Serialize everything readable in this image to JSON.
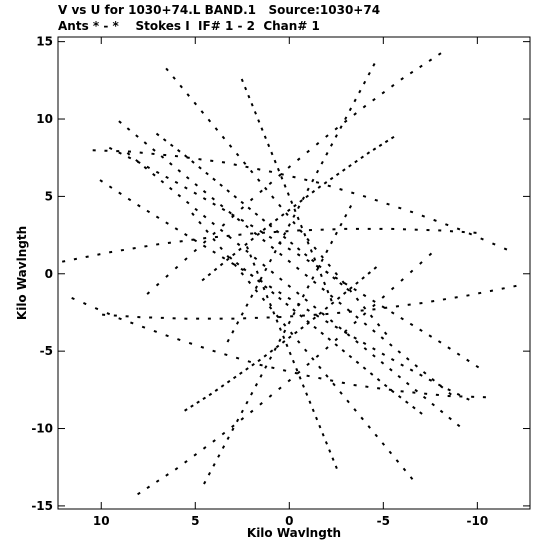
{
  "header": {
    "line1": "V vs U for 1030+74.L BAND.1   Source:1030+74",
    "line2": "Ants * - *    Stokes I  IF# 1 - 2  Chan# 1"
  },
  "chart_data": {
    "type": "scatter",
    "title": "",
    "xlabel": "Kilo Wavlngth",
    "ylabel": "Kilo Wavlngth",
    "xlim": [
      12.3,
      -12.8
    ],
    "ylim": [
      -15.2,
      15.3
    ],
    "x_reversed": true,
    "x_ticks": [
      10,
      5,
      0,
      -5,
      -10
    ],
    "x_tick_labels": [
      "10",
      "5",
      "0",
      "-5",
      "-10"
    ],
    "y_ticks": [
      15,
      10,
      5,
      0,
      -5,
      -10,
      -15
    ],
    "y_tick_labels": [
      "15",
      "10",
      "5",
      "0",
      "-5",
      "-10",
      "-15"
    ],
    "grid": false,
    "legend": "none",
    "marker": "short dash",
    "color": "#000000",
    "series": [
      {
        "description": "uv coverage tracks (conjugate symmetric); sampled points along baseline ellipses",
        "tracks": [
          {
            "u": [
              -8.0,
              -6.0,
              -4.0,
              -2.0,
              0.0,
              2.0,
              4.0,
              6.0,
              8.0
            ],
            "v": [
              14.2,
              12.6,
              10.8,
              8.9,
              6.9,
              4.8,
              2.6,
              0.4,
              -1.8
            ]
          },
          {
            "u": [
              -11.5,
              -9.0,
              -6.5,
              -4.0,
              -1.5,
              1.0,
              3.5,
              6.0,
              8.5,
              11.0
            ],
            "v": [
              1.6,
              2.9,
              4.0,
              5.0,
              5.9,
              6.6,
              7.2,
              7.6,
              7.9,
              8.0
            ]
          },
          {
            "u": [
              -10.0,
              -8.0,
              -6.0,
              -4.0,
              -2.0,
              0.0,
              2.0,
              4.0,
              6.0,
              8.0,
              10.0
            ],
            "v": [
              -6.0,
              -4.4,
              -2.9,
              -1.4,
              0.1,
              1.6,
              3.1,
              4.5,
              5.9,
              7.2,
              8.4
            ]
          },
          {
            "u": [
              -6.5,
              -5.0,
              -3.5,
              -2.0,
              -0.5,
              1.0,
              2.5,
              4.0,
              5.5
            ],
            "v": [
              -13.2,
              -11.0,
              -8.8,
              -6.6,
              -4.4,
              -2.2,
              0.0,
              2.2,
              4.4
            ]
          },
          {
            "u": [
              -4.5,
              -3.5,
              -2.5,
              -1.5,
              -0.5,
              0.5,
              1.5,
              2.5,
              3.5
            ],
            "v": [
              13.5,
              11.2,
              8.9,
              6.6,
              4.3,
              2.0,
              -0.3,
              -2.6,
              -4.9
            ]
          },
          {
            "u": [
              -12.0,
              -9.5,
              -7.0,
              -4.5,
              -2.0,
              0.5,
              3.0,
              5.5,
              8.0,
              10.5
            ],
            "v": [
              -0.8,
              -1.4,
              -1.9,
              -2.3,
              -2.6,
              -2.8,
              -2.9,
              -2.9,
              -2.8,
              -2.6
            ]
          },
          {
            "u": [
              -7.0,
              -5.5,
              -4.0,
              -2.5,
              -1.0,
              0.5,
              2.0,
              3.5
            ],
            "v": [
              -9.0,
              -7.6,
              -6.1,
              -4.6,
              -3.1,
              -1.6,
              -0.1,
              1.4
            ]
          },
          {
            "u": [
              -2.5,
              -1.8,
              -1.1,
              -0.4,
              0.3,
              1.0,
              1.7,
              2.4
            ],
            "v": [
              -12.5,
              -10.4,
              -8.3,
              -6.2,
              -4.1,
              -2.0,
              0.1,
              2.2
            ]
          },
          {
            "u": [
              -5.5,
              -4.2,
              -2.9,
              -1.6,
              -0.3,
              1.0,
              2.3,
              3.6,
              4.9
            ],
            "v": [
              8.8,
              7.8,
              6.7,
              5.6,
              4.4,
              3.2,
              1.9,
              0.6,
              -0.7
            ]
          },
          {
            "u": [
              -9.0,
              -7.2,
              -5.4,
              -3.6,
              -1.8,
              0.0,
              1.8,
              3.6,
              5.4,
              7.2,
              9.0
            ],
            "v": [
              -9.8,
              -8.0,
              -6.2,
              -4.4,
              -2.6,
              -0.8,
              1.0,
              2.8,
              4.6,
              6.4,
              8.2
            ]
          }
        ]
      }
    ]
  }
}
